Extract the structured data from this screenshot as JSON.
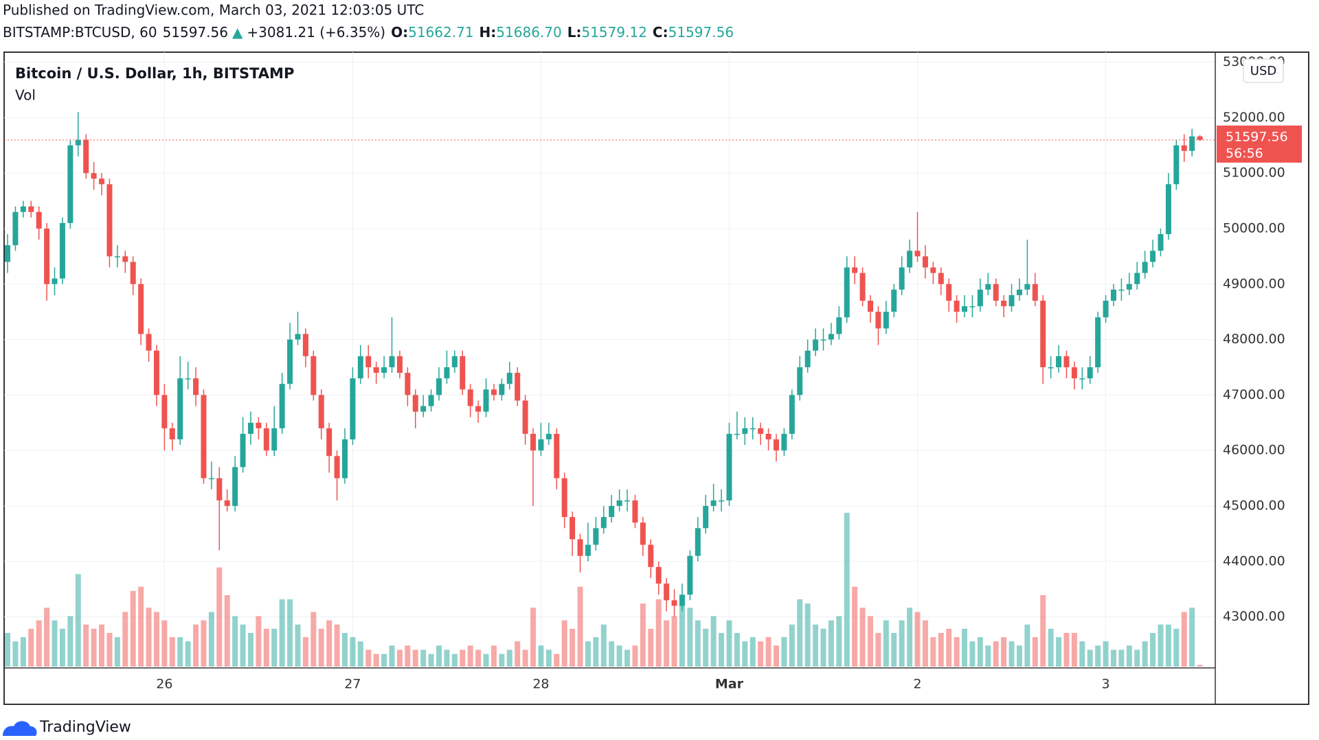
{
  "header": {
    "published": "Published on TradingView.com, March 03, 2021 12:03:05 UTC",
    "symbol": "BITSTAMP:BTCUSD, 60",
    "last": "51597.56",
    "arrow": "▲",
    "change": "+3081.21 (+6.35%)",
    "open_label": "O:",
    "open": "51662.71",
    "high_label": "H:",
    "high": "51686.70",
    "low_label": "L:",
    "low": "51579.12",
    "close_label": "C:",
    "close": "51597.56"
  },
  "footer": {
    "brand": "TradingView"
  },
  "chart_data": {
    "type": "candlestick",
    "title": "Bitcoin / U.S. Dollar, 1h, BITSTAMP",
    "volume_label": "Vol",
    "currency": "USD",
    "countdown": "56:56",
    "up_color": "#26a69a",
    "down_color": "#ef5350",
    "grid": true,
    "ylim": [
      42080,
      53180
    ],
    "yticks": [
      {
        "value": 43000,
        "label": "43000.00"
      },
      {
        "value": 44000,
        "label": "44000.00"
      },
      {
        "value": 45000,
        "label": "45000.00"
      },
      {
        "value": 46000,
        "label": "46000.00"
      },
      {
        "value": 47000,
        "label": "47000.00"
      },
      {
        "value": 48000,
        "label": "48000.00"
      },
      {
        "value": 49000,
        "label": "49000.00"
      },
      {
        "value": 50000,
        "label": "50000.00"
      },
      {
        "value": 51000,
        "label": "51000.00"
      },
      {
        "value": 52000,
        "label": "52000.00"
      },
      {
        "value": 53000,
        "label": "53000.00"
      }
    ],
    "categories": [
      null,
      null,
      null,
      null,
      null,
      null,
      null,
      null,
      null,
      null,
      null,
      null,
      null,
      null,
      null,
      null,
      null,
      null,
      null,
      null,
      "26",
      null,
      null,
      null,
      null,
      null,
      null,
      null,
      null,
      null,
      null,
      null,
      null,
      null,
      null,
      null,
      null,
      null,
      null,
      null,
      null,
      null,
      null,
      null,
      "27",
      null,
      null,
      null,
      null,
      null,
      null,
      null,
      null,
      null,
      null,
      null,
      null,
      null,
      null,
      null,
      null,
      null,
      null,
      null,
      null,
      null,
      null,
      null,
      "28",
      null,
      null,
      null,
      null,
      null,
      null,
      null,
      null,
      null,
      null,
      null,
      null,
      null,
      null,
      null,
      null,
      null,
      null,
      null,
      null,
      null,
      null,
      null,
      "Mar",
      null,
      null,
      null,
      null,
      null,
      null,
      null,
      null,
      null,
      null,
      null,
      null,
      null,
      null,
      null,
      null,
      null,
      null,
      null,
      null,
      null,
      null,
      null,
      "2",
      null,
      null,
      null,
      null,
      null,
      null,
      null,
      null,
      null,
      null,
      null,
      null,
      null,
      null,
      null,
      null,
      null,
      null,
      null,
      null,
      null,
      null,
      null,
      "3",
      null,
      null,
      null,
      null,
      null,
      null,
      null,
      null,
      null,
      null,
      null,
      null
    ],
    "open": [
      49400,
      49700,
      50300,
      50400,
      50300,
      50000,
      49000,
      49100,
      50100,
      51500,
      51600,
      51000,
      50900,
      50800,
      49500,
      49500,
      49400,
      49000,
      48100,
      47800,
      47000,
      46400,
      46200,
      47300,
      47300,
      47000,
      45500,
      45500,
      45100,
      45000,
      45700,
      46300,
      46500,
      46400,
      46000,
      46400,
      47200,
      48000,
      48100,
      47700,
      47000,
      46400,
      45900,
      45500,
      46200,
      47300,
      47700,
      47500,
      47400,
      47500,
      47700,
      47400,
      47000,
      46700,
      46800,
      47000,
      47300,
      47500,
      47700,
      47100,
      46800,
      46700,
      47100,
      47000,
      47200,
      47400,
      46900,
      46300,
      46000,
      46200,
      46300,
      45500,
      44800,
      44400,
      44100,
      44300,
      44600,
      44800,
      45000,
      45100,
      45100,
      44700,
      44300,
      43900,
      43600,
      43300,
      43200,
      43400,
      44100,
      44600,
      45000,
      45100,
      45100,
      46300,
      46300,
      46400,
      46400,
      46300,
      46200,
      46000,
      46300,
      47000,
      47500,
      47800,
      48000,
      48000,
      48100,
      48400,
      49300,
      49200,
      48700,
      48500,
      48200,
      48500,
      48900,
      49300,
      49600,
      49500,
      49300,
      49200,
      49000,
      48700,
      48500,
      48600,
      48600,
      48900,
      49000,
      48700,
      48600,
      48800,
      48900,
      49000,
      48700,
      47500,
      47500,
      47700,
      47500,
      47300,
      47300,
      47500,
      48400,
      48700,
      48900,
      48900,
      49000,
      49200,
      49400,
      49600,
      49900,
      50800,
      51500,
      51400,
      51662.71
    ],
    "high": [
      49900,
      50400,
      50500,
      50500,
      50400,
      50100,
      49300,
      50200,
      51600,
      52100,
      51700,
      51200,
      51000,
      50900,
      49700,
      49600,
      49500,
      49100,
      48200,
      47900,
      47200,
      46500,
      47700,
      47600,
      47500,
      47100,
      45800,
      45700,
      45300,
      45900,
      46600,
      46700,
      46600,
      46500,
      46800,
      47400,
      48300,
      48500,
      48200,
      47800,
      47100,
      46500,
      46000,
      46400,
      47500,
      47900,
      47900,
      47600,
      47700,
      48400,
      47800,
      47500,
      47100,
      47000,
      47100,
      47500,
      47800,
      47800,
      47800,
      47200,
      46900,
      47300,
      47200,
      47300,
      47600,
      47500,
      47000,
      46400,
      46500,
      46500,
      46400,
      45600,
      44900,
      44500,
      44700,
      44800,
      45000,
      45200,
      45300,
      45300,
      45200,
      44800,
      44400,
      44000,
      43700,
      43500,
      43600,
      44200,
      44800,
      45200,
      45400,
      45300,
      46500,
      46700,
      46600,
      46600,
      46500,
      46400,
      46300,
      46400,
      47100,
      47700,
      48000,
      48200,
      48200,
      48300,
      48600,
      49500,
      49500,
      49300,
      48800,
      48600,
      48700,
      49000,
      49500,
      49800,
      50300,
      49700,
      49400,
      49300,
      49100,
      48800,
      48800,
      48800,
      49100,
      49200,
      49100,
      48800,
      49000,
      49100,
      49800,
      49200,
      48800,
      47700,
      47900,
      47800,
      47600,
      47500,
      47700,
      48500,
      48800,
      49000,
      49100,
      49200,
      49400,
      49600,
      49800,
      50000,
      51000,
      51600,
      51700,
      51800,
      51686.7
    ],
    "low": [
      49200,
      49600,
      50200,
      50200,
      49800,
      48700,
      48800,
      49000,
      50000,
      51300,
      50900,
      50700,
      50600,
      49300,
      49300,
      49200,
      48800,
      47900,
      47600,
      46800,
      46000,
      46000,
      46100,
      47100,
      46800,
      45400,
      45300,
      44200,
      44900,
      44900,
      45600,
      46100,
      46200,
      45900,
      45900,
      46300,
      47100,
      47900,
      47500,
      46900,
      46200,
      45600,
      45100,
      45400,
      46100,
      47200,
      47300,
      47200,
      47300,
      47400,
      47300,
      46800,
      46400,
      46600,
      46700,
      46900,
      47200,
      47400,
      47000,
      46600,
      46500,
      46600,
      46900,
      46900,
      47100,
      46800,
      46100,
      45000,
      45900,
      46100,
      45300,
      44600,
      44100,
      43800,
      44000,
      44200,
      44500,
      44700,
      44900,
      44900,
      44600,
      44100,
      43700,
      43400,
      43100,
      43000,
      43100,
      43300,
      44000,
      44500,
      44900,
      44900,
      45000,
      46200,
      46100,
      46200,
      46100,
      46000,
      45800,
      45900,
      46200,
      46900,
      47400,
      47700,
      47800,
      47900,
      48000,
      48300,
      49000,
      48600,
      48300,
      47900,
      48100,
      48400,
      48800,
      49200,
      49400,
      49100,
      49000,
      48800,
      48500,
      48300,
      48400,
      48400,
      48500,
      48800,
      48600,
      48400,
      48500,
      48700,
      48800,
      48600,
      47200,
      47300,
      47400,
      47300,
      47100,
      47100,
      47200,
      47400,
      48300,
      48600,
      48700,
      48800,
      48900,
      49100,
      49300,
      49500,
      49800,
      50700,
      51200,
      51300,
      51579.12
    ],
    "close": [
      49700,
      50300,
      50400,
      50300,
      50000,
      49000,
      49100,
      50100,
      51500,
      51600,
      51000,
      50900,
      50800,
      49500,
      49500,
      49400,
      49000,
      48100,
      47800,
      47000,
      46400,
      46200,
      47300,
      47300,
      47000,
      45500,
      45500,
      45100,
      45000,
      45700,
      46300,
      46500,
      46400,
      46000,
      46400,
      47200,
      48000,
      48100,
      47700,
      47000,
      46400,
      45900,
      45500,
      46200,
      47300,
      47700,
      47500,
      47400,
      47500,
      47700,
      47400,
      47000,
      46700,
      46800,
      47000,
      47300,
      47500,
      47700,
      47100,
      46800,
      46700,
      47100,
      47000,
      47200,
      47400,
      46900,
      46300,
      46000,
      46200,
      46300,
      45500,
      44800,
      44400,
      44100,
      44300,
      44600,
      44800,
      45000,
      45100,
      45100,
      44700,
      44300,
      43900,
      43600,
      43300,
      43200,
      43400,
      44100,
      44600,
      45000,
      45100,
      45100,
      46300,
      46300,
      46400,
      46400,
      46300,
      46200,
      46000,
      46300,
      47000,
      47500,
      47800,
      48000,
      48000,
      48100,
      48400,
      49300,
      49200,
      48700,
      48500,
      48200,
      48500,
      48900,
      49300,
      49600,
      49500,
      49300,
      49200,
      49000,
      48700,
      48500,
      48600,
      48600,
      48900,
      49000,
      48700,
      48600,
      48800,
      48900,
      49000,
      48700,
      47500,
      47500,
      47700,
      47500,
      47300,
      47300,
      47500,
      48400,
      48700,
      48900,
      48900,
      49000,
      49200,
      49400,
      49600,
      49900,
      50800,
      51500,
      51400,
      51662.71,
      51597.56
    ],
    "volume": [
      40,
      30,
      35,
      45,
      55,
      70,
      55,
      45,
      60,
      110,
      50,
      45,
      50,
      40,
      35,
      65,
      90,
      95,
      70,
      65,
      55,
      35,
      35,
      30,
      50,
      55,
      65,
      118,
      85,
      60,
      50,
      40,
      60,
      45,
      45,
      80,
      80,
      50,
      35,
      65,
      45,
      55,
      50,
      40,
      35,
      30,
      20,
      15,
      15,
      25,
      20,
      25,
      20,
      20,
      15,
      25,
      20,
      15,
      20,
      25,
      20,
      15,
      25,
      15,
      20,
      30,
      20,
      70,
      25,
      20,
      15,
      55,
      45,
      95,
      30,
      35,
      50,
      30,
      25,
      20,
      25,
      75,
      45,
      80,
      55,
      60,
      75,
      70,
      55,
      45,
      60,
      40,
      55,
      40,
      30,
      35,
      30,
      35,
      25,
      35,
      50,
      80,
      75,
      50,
      45,
      55,
      60,
      183,
      95,
      70,
      60,
      40,
      55,
      40,
      55,
      70,
      65,
      55,
      35,
      40,
      45,
      35,
      45,
      30,
      35,
      25,
      30,
      35,
      30,
      25,
      50,
      35,
      85,
      45,
      35,
      40,
      40,
      30,
      20,
      25,
      30,
      20,
      20,
      25,
      20,
      30,
      40,
      50,
      50,
      45,
      65,
      70,
      2
    ]
  }
}
